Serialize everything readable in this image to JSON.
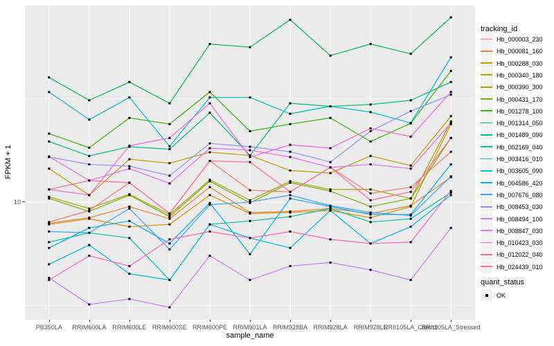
{
  "chart_data": {
    "type": "line",
    "title": "",
    "xlabel": "sample_name",
    "ylabel": "FPKM + 1",
    "yscale": "log10",
    "ylim": [
      2.7,
      89
    ],
    "yticks": [
      10
    ],
    "ytick_label": "10",
    "minor_gridlines": [
      3.162,
      31.62
    ],
    "panel_bg": "#EBEBEB",
    "grid_color": "#FFFFFF",
    "point_color": "#000000",
    "point_shape": "square",
    "legend_position": "right",
    "categories": [
      "PB350LA",
      "RRIM600LA",
      "RRIM600LE",
      "RRIM600SE",
      "RRIM600PE",
      "RRIM901LA",
      "RRIM928BA",
      "RRIM928LA",
      "RRIM928LE",
      "RRII105LA_Control",
      "RRII105LA_Stressed"
    ],
    "series": [
      {
        "name": "Hb_000003_230",
        "color": "#F8766D",
        "values": [
          8.0,
          9.1,
          12.4,
          8.8,
          15.8,
          11.4,
          11.2,
          14.7,
          11.0,
          11.8,
          17.5
        ]
      },
      {
        "name": "Hb_000081_160",
        "color": "#EA8331",
        "values": [
          7.9,
          8.4,
          9.5,
          8.3,
          11.8,
          8.9,
          9.0,
          9.3,
          8.8,
          9.6,
          13.2
        ]
      },
      {
        "name": "Hb_000288_030",
        "color": "#D89000",
        "values": [
          7.8,
          8.3,
          7.6,
          7.8,
          10.8,
          8.8,
          8.9,
          9.1,
          8.4,
          9.5,
          23.8
        ]
      },
      {
        "name": "Hb_000340_180",
        "color": "#C09B00",
        "values": [
          14.5,
          10.8,
          16.1,
          15.4,
          17.4,
          16.8,
          14.2,
          13.8,
          16.7,
          15.0,
          26.0
        ]
      },
      {
        "name": "Hb_000390_300",
        "color": "#A3A500",
        "values": [
          10.6,
          9.3,
          10.9,
          8.7,
          12.8,
          10.2,
          12.6,
          11.5,
          11.5,
          10.4,
          24.5
        ]
      },
      {
        "name": "Hb_000431_170",
        "color": "#7CAE00",
        "values": [
          10.4,
          9.0,
          10.8,
          8.5,
          12.6,
          9.9,
          12.4,
          11.3,
          9.5,
          10.4,
          20.4
        ]
      },
      {
        "name": "Hb_001278_100",
        "color": "#39B600",
        "values": [
          21.4,
          18.3,
          25.5,
          23.8,
          34.0,
          22.0,
          23.8,
          25.5,
          19.6,
          24.0,
          43.0
        ]
      },
      {
        "name": "Hb_001314_050",
        "color": "#00BB4E",
        "values": [
          40.0,
          31.0,
          38.0,
          30.0,
          58.0,
          56.0,
          76.0,
          51.0,
          58.0,
          52.0,
          78.0
        ]
      },
      {
        "name": "Hb_001489_090",
        "color": "#00BF7D",
        "values": [
          19.6,
          16.7,
          18.5,
          18.0,
          27.0,
          16.8,
          30.0,
          29.0,
          29.6,
          31.0,
          38.0
        ]
      },
      {
        "name": "Hb_002169_040",
        "color": "#00C1A3",
        "values": [
          6.4,
          7.1,
          6.7,
          4.2,
          7.8,
          8.1,
          8.5,
          9.3,
          8.0,
          8.3,
          11.1
        ]
      },
      {
        "name": "Hb_003416_010",
        "color": "#00BFC4",
        "values": [
          34.0,
          25.0,
          32.0,
          18.6,
          32.0,
          32.0,
          26.7,
          29.0,
          27.2,
          24.1,
          50.0
        ]
      },
      {
        "name": "Hb_003605_090",
        "color": "#00BAE0",
        "values": [
          5.0,
          6.2,
          4.5,
          4.2,
          7.8,
          6.7,
          6.0,
          9.1,
          6.3,
          7.6,
          10.8
        ]
      },
      {
        "name": "Hb_004586_420",
        "color": "#00B0F6",
        "values": [
          6.0,
          7.5,
          8.1,
          6.3,
          9.9,
          5.6,
          10.4,
          9.5,
          8.7,
          8.7,
          15.2
        ]
      },
      {
        "name": "Hb_007676_080",
        "color": "#35A2FF",
        "values": [
          7.2,
          7.1,
          9.3,
          5.9,
          9.7,
          10.0,
          10.8,
          9.6,
          8.9,
          8.6,
          13.3
        ]
      },
      {
        "name": "Hb_008453_030",
        "color": "#9590FF",
        "values": [
          16.5,
          15.2,
          14.9,
          13.4,
          19.2,
          18.5,
          17.5,
          15.6,
          22.0,
          27.5,
          33.0
        ]
      },
      {
        "name": "Hb_008494_100",
        "color": "#C77CFF",
        "values": [
          4.3,
          3.2,
          3.4,
          3.1,
          5.5,
          4.2,
          4.9,
          5.1,
          4.7,
          4.2,
          7.5
        ]
      },
      {
        "name": "Hb_008847_030",
        "color": "#E76BF3",
        "values": [
          16.6,
          12.7,
          14.5,
          12.3,
          18.2,
          17.8,
          16.5,
          14.7,
          15.2,
          14.5,
          24.1
        ]
      },
      {
        "name": "Hb_010423_030",
        "color": "#FA62DB",
        "values": [
          11.5,
          10.8,
          18.7,
          20.4,
          30.0,
          16.5,
          18.9,
          18.2,
          22.7,
          20.7,
          34.0
        ]
      },
      {
        "name": "Hb_012022_040",
        "color": "#FF62BC",
        "values": [
          4.2,
          5.5,
          4.9,
          6.6,
          7.2,
          6.7,
          7.2,
          6.6,
          6.3,
          6.4,
          11.3
        ]
      },
      {
        "name": "Hb_024439_010",
        "color": "#FF6A98",
        "values": [
          11.5,
          12.7,
          12.4,
          8.8,
          15.8,
          15.6,
          11.2,
          14.7,
          10.2,
          11.2,
          20.4
        ]
      }
    ],
    "legend": {
      "tracking_id_title": "tracking_id",
      "quant_status_title": "quant_status",
      "quant_status_value": "OK"
    }
  }
}
